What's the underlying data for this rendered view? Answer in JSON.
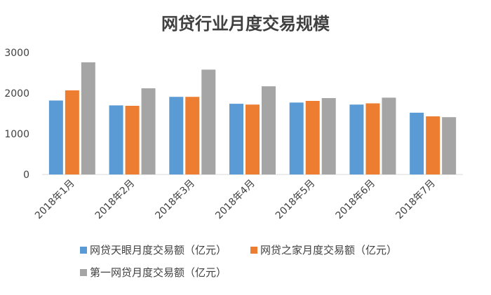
{
  "chart_data": {
    "type": "bar",
    "title": "网贷行业月度交易规模",
    "xlabel": "",
    "ylabel": "",
    "categories": [
      "2018年1月",
      "2018年2月",
      "2018年3月",
      "2018年4月",
      "2018年5月",
      "2018年6月",
      "2018年7月"
    ],
    "series": [
      {
        "name": "网贷天眼月度交易额（亿元）",
        "color": "#5B9BD5",
        "values": [
          1820,
          1700,
          1910,
          1740,
          1770,
          1720,
          1520
        ]
      },
      {
        "name": "网贷之家月度交易额（亿元）",
        "color": "#ED7D31",
        "values": [
          2070,
          1690,
          1910,
          1720,
          1810,
          1750,
          1430
        ]
      },
      {
        "name": "第一网贷月度交易额（亿元）",
        "color": "#A5A5A5",
        "values": [
          2760,
          2120,
          2580,
          2170,
          1880,
          1890,
          1410
        ]
      }
    ],
    "ylim": [
      0,
      3000
    ],
    "yticks": [
      0,
      1000,
      2000,
      3000
    ],
    "ytick_labels": [
      "0",
      "1000",
      "2000",
      "3000"
    ],
    "grid": false,
    "legend_position": "bottom"
  }
}
